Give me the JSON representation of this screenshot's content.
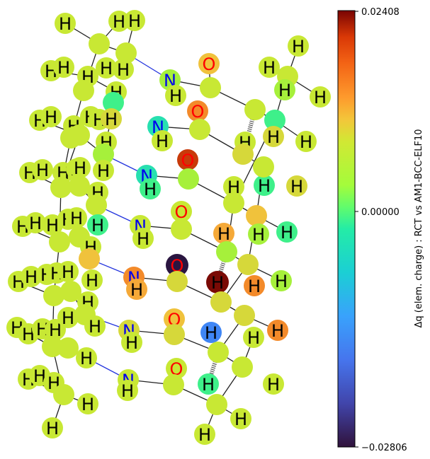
{
  "colorbar": {
    "label": "Δq (elem. charge) : RCT vs AM1-BCC-ELF10",
    "max_label": "0.02408",
    "mid_label": "0.00000",
    "min_label": "−0.02806",
    "max_value": 0.02408,
    "min_value": -0.02806,
    "colormap": "turbo"
  },
  "molecule": {
    "atom_symbols": [
      "H",
      "N",
      "O"
    ],
    "color_H": "#000000",
    "color_N": "#0000ee",
    "color_O": "#ff0000",
    "bond_color": "#222222",
    "n_bond_color": "#2233dd"
  }
}
